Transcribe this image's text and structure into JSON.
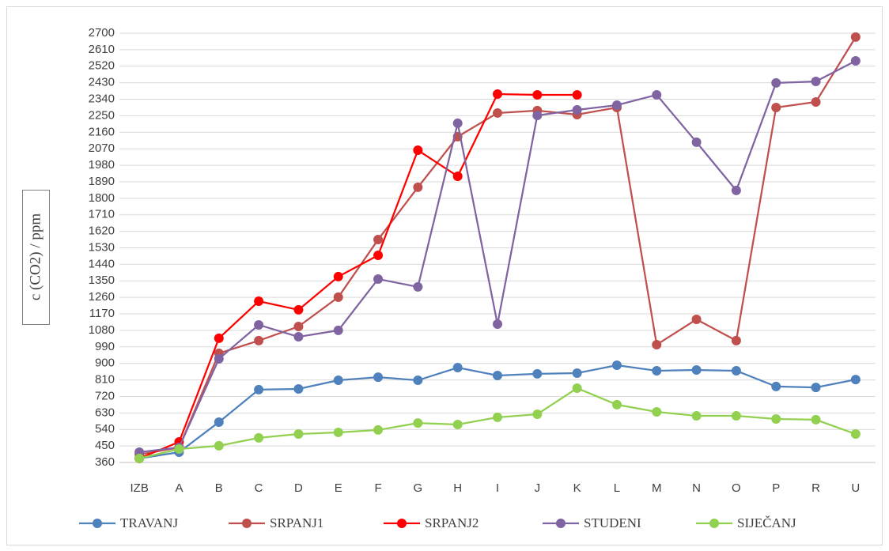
{
  "chart_data": {
    "type": "line",
    "y_axis_label": "c (CO2) / ppm",
    "categories": [
      "IZB",
      "A",
      "B",
      "C",
      "D",
      "E",
      "F",
      "G",
      "H",
      "I",
      "J",
      "K",
      "L",
      "M",
      "N",
      "O",
      "P",
      "R",
      "U"
    ],
    "series": [
      {
        "name": "TRAVANJ",
        "color": "#4f81bd",
        "values": [
          382,
          416,
          580,
          757,
          761,
          808,
          825,
          808,
          877,
          834,
          843,
          847,
          890,
          860,
          864,
          860,
          774,
          769,
          812
        ]
      },
      {
        "name": "SRPANJ1",
        "color": "#c0504d",
        "values": [
          403,
          442,
          955,
          1024,
          1101,
          1261,
          1575,
          1860,
          2136,
          2265,
          2278,
          2256,
          2295,
          1002,
          1140,
          1024,
          2295,
          2325,
          2679
        ]
      },
      {
        "name": "SRPANJ2",
        "color": "#ff0000",
        "values": [
          382,
          472,
          1037,
          1239,
          1192,
          1373,
          1489,
          2062,
          1920,
          2368,
          2364,
          2364,
          null,
          null,
          null,
          null,
          null,
          null,
          null
        ]
      },
      {
        "name": "STUDENI",
        "color": "#8064a2",
        "values": [
          416,
          442,
          925,
          1110,
          1045,
          1080,
          1360,
          1317,
          2209,
          1114,
          2252,
          2282,
          2308,
          2364,
          2106,
          1843,
          2429,
          2437,
          2549
        ]
      },
      {
        "name": "SIJEČANJ",
        "color": "#92d050",
        "values": [
          382,
          433,
          451,
          494,
          515,
          524,
          537,
          575,
          567,
          606,
          623,
          765,
          675,
          636,
          614,
          614,
          597,
          593,
          515
        ]
      }
    ],
    "ylim": [
      360,
      2700
    ],
    "yticks": [
      360,
      450,
      540,
      630,
      720,
      810,
      900,
      990,
      1080,
      1170,
      1260,
      1350,
      1440,
      1530,
      1620,
      1710,
      1800,
      1890,
      1980,
      2070,
      2160,
      2250,
      2340,
      2430,
      2520,
      2610,
      2700
    ],
    "grid": true,
    "legend": "bottom"
  }
}
